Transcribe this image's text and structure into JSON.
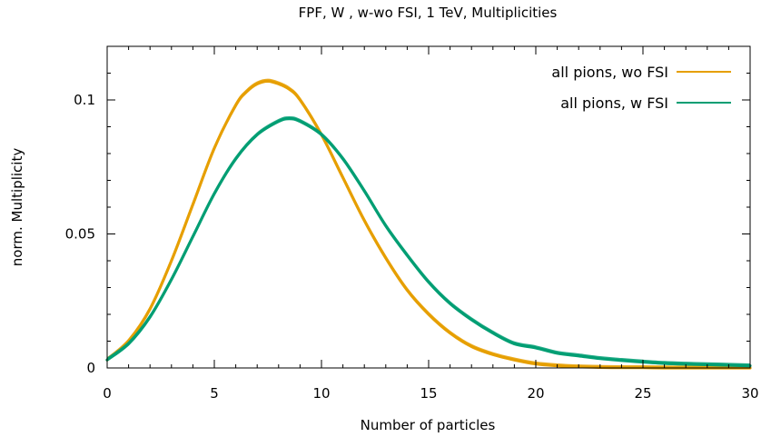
{
  "chart_data": {
    "type": "line",
    "title": "FPF, W , w-wo FSI, 1 TeV, Multiplicities",
    "xlabel": "Number of particles",
    "ylabel": "norm. Multiplicity",
    "xlim": [
      0,
      30
    ],
    "ylim": [
      0,
      0.12
    ],
    "x_ticks": [
      0,
      5,
      10,
      15,
      20,
      25,
      30
    ],
    "x_tick_labels": [
      "0",
      "5",
      "10",
      "15",
      "20",
      "25",
      "30"
    ],
    "y_ticks": [
      0,
      0.05,
      0.1
    ],
    "y_tick_labels": [
      "0",
      "0.05",
      "0.1"
    ],
    "grid": false,
    "legend_position": "top-right",
    "series": [
      {
        "name": "all pions, wo FSI",
        "color": "#E69F00",
        "x": [
          0,
          1,
          2,
          3,
          4,
          5,
          6,
          6.5,
          7,
          7.5,
          8,
          8.5,
          9,
          10,
          11,
          12,
          13,
          14,
          15,
          16,
          17,
          18,
          19,
          20,
          21,
          22,
          23,
          24,
          25,
          26,
          27,
          28,
          29,
          30
        ],
        "y": [
          0.003,
          0.01,
          0.022,
          0.04,
          0.061,
          0.082,
          0.098,
          0.103,
          0.106,
          0.107,
          0.106,
          0.104,
          0.1,
          0.087,
          0.071,
          0.055,
          0.041,
          0.029,
          0.02,
          0.013,
          0.008,
          0.005,
          0.003,
          0.0015,
          0.0008,
          0.0004,
          0.0002,
          0.0001,
          0.0001,
          0,
          0,
          0,
          0,
          0
        ]
      },
      {
        "name": "all pions, w FSI",
        "color": "#009E73",
        "x": [
          0,
          1,
          2,
          3,
          4,
          5,
          6,
          7,
          8,
          8.5,
          9,
          10,
          11,
          12,
          13,
          14,
          15,
          16,
          17,
          18,
          19,
          20,
          21,
          22,
          23,
          24,
          25,
          26,
          27,
          28,
          29,
          30
        ],
        "y": [
          0.003,
          0.009,
          0.019,
          0.033,
          0.049,
          0.065,
          0.078,
          0.087,
          0.092,
          0.093,
          0.092,
          0.087,
          0.078,
          0.066,
          0.053,
          0.042,
          0.032,
          0.024,
          0.018,
          0.013,
          0.009,
          0.0075,
          0.0055,
          0.0045,
          0.0035,
          0.0028,
          0.0022,
          0.0017,
          0.0014,
          0.0012,
          0.001,
          0.0008
        ]
      }
    ]
  }
}
